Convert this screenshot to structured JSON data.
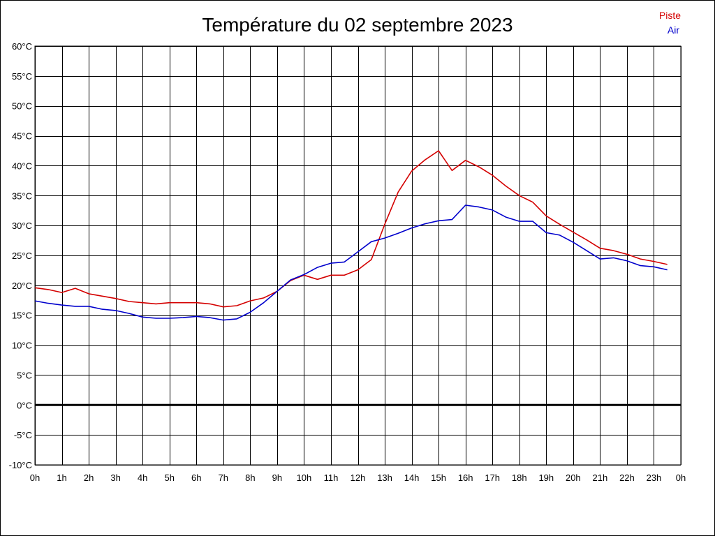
{
  "chart_data": {
    "type": "line",
    "title": "Température du 02 septembre 2023",
    "xlabel": "",
    "ylabel": "",
    "x_ticks": [
      "0h",
      "1h",
      "2h",
      "3h",
      "4h",
      "5h",
      "6h",
      "7h",
      "8h",
      "9h",
      "10h",
      "11h",
      "12h",
      "13h",
      "14h",
      "15h",
      "16h",
      "17h",
      "18h",
      "19h",
      "20h",
      "21h",
      "22h",
      "23h",
      "0h"
    ],
    "y_ticks": [
      "60°C",
      "55°C",
      "50°C",
      "45°C",
      "40°C",
      "35°C",
      "30°C",
      "25°C",
      "20°C",
      "15°C",
      "10°C",
      "5°C",
      "0°C",
      "-5°C",
      "-10°C"
    ],
    "ylim": [
      -10,
      60
    ],
    "xlim": [
      0,
      24
    ],
    "grid": true,
    "legend_position": "top-right",
    "x": [
      0,
      0.5,
      1,
      1.5,
      2,
      2.5,
      3,
      3.5,
      4,
      4.5,
      5,
      5.5,
      6,
      6.5,
      7,
      7.5,
      8,
      8.5,
      9,
      9.5,
      10,
      10.5,
      11,
      11.5,
      12,
      12.5,
      13,
      13.5,
      14,
      14.5,
      15,
      15.5,
      16,
      16.5,
      17,
      17.5,
      18,
      18.5,
      19,
      19.5,
      20,
      20.5,
      21,
      21.5,
      22,
      22.5,
      23,
      23.5
    ],
    "series": [
      {
        "name": "Piste",
        "color": "#d40000",
        "values": [
          19.6,
          19.3,
          18.8,
          19.5,
          18.6,
          18.2,
          17.8,
          17.3,
          17.1,
          16.9,
          17.1,
          17.1,
          17.1,
          16.9,
          16.4,
          16.6,
          17.4,
          17.9,
          19.0,
          20.8,
          21.7,
          21.0,
          21.7,
          21.7,
          22.6,
          24.3,
          30.2,
          35.6,
          39.1,
          41.0,
          42.5,
          39.2,
          40.9,
          39.8,
          38.4,
          36.6,
          35.0,
          33.9,
          31.6,
          30.2,
          28.9,
          27.6,
          26.2,
          25.8,
          25.2,
          24.4,
          24.0,
          23.5
        ]
      },
      {
        "name": "Air",
        "color": "#0000cc",
        "values": [
          17.4,
          17.0,
          16.7,
          16.5,
          16.5,
          16.0,
          15.8,
          15.3,
          14.7,
          14.5,
          14.5,
          14.6,
          14.8,
          14.6,
          14.2,
          14.4,
          15.5,
          17.1,
          19.0,
          20.9,
          21.8,
          23.0,
          23.7,
          23.9,
          25.6,
          27.3,
          27.9,
          28.7,
          29.6,
          30.3,
          30.8,
          31.0,
          33.4,
          33.1,
          32.6,
          31.4,
          30.7,
          30.7,
          28.8,
          28.4,
          27.2,
          25.8,
          24.4,
          24.6,
          24.1,
          23.3,
          23.1,
          22.6
        ]
      }
    ]
  }
}
